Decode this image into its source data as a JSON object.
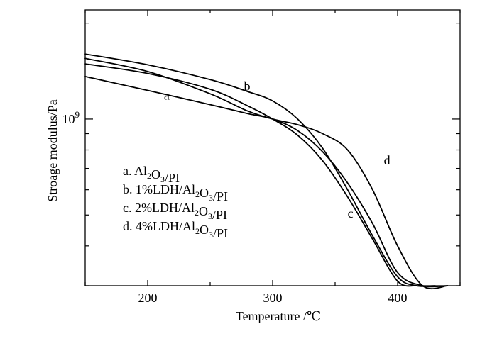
{
  "chart_data": {
    "type": "line",
    "xlabel": "Temperature /℃",
    "ylabel": "Stroage modulus/Pa",
    "y_scale": "log",
    "xlim": [
      150,
      450
    ],
    "ylim": [
      0.3,
      2.2
    ],
    "x_ticks": [
      200,
      300,
      400
    ],
    "y_ticks": [
      {
        "value": 1.0,
        "base": "10",
        "exp": "9"
      }
    ],
    "legend_position": "lower-left",
    "legend": [
      {
        "parts": [
          {
            "t": "a. Al"
          },
          {
            "s": "2"
          },
          {
            "t": "O"
          },
          {
            "s": "3"
          },
          {
            "t": "/PI"
          }
        ]
      },
      {
        "parts": [
          {
            "t": "b. 1%LDH/Al"
          },
          {
            "s": "2"
          },
          {
            "t": "O"
          },
          {
            "s": "3"
          },
          {
            "t": "/PI"
          }
        ]
      },
      {
        "parts": [
          {
            "t": "c. 2%LDH/Al"
          },
          {
            "s": "2"
          },
          {
            "t": "O"
          },
          {
            "s": "3"
          },
          {
            "t": "/PI"
          }
        ]
      },
      {
        "parts": [
          {
            "t": "d. 4%LDH/Al"
          },
          {
            "s": "2"
          },
          {
            "t": "O"
          },
          {
            "s": "3"
          },
          {
            "t": "/PI"
          }
        ]
      }
    ],
    "series": [
      {
        "label": "a",
        "label_at": [
          213,
          1.15
        ],
        "x": [
          150,
          200,
          250,
          280,
          300,
          320,
          340,
          360,
          380,
          400,
          420,
          440
        ],
        "y": [
          1.36,
          1.23,
          1.11,
          1.04,
          1.0,
          0.92,
          0.79,
          0.63,
          0.47,
          0.33,
          0.3,
          0.3
        ]
      },
      {
        "label": "b",
        "label_at": [
          277,
          1.23
        ],
        "x": [
          150,
          200,
          250,
          280,
          300,
          320,
          340,
          360,
          380,
          400,
          415,
          430
        ],
        "y": [
          1.6,
          1.48,
          1.33,
          1.22,
          1.14,
          1.0,
          0.81,
          0.6,
          0.43,
          0.32,
          0.3,
          0.3
        ]
      },
      {
        "label": "c",
        "label_at": [
          360,
          0.49
        ],
        "x": [
          150,
          200,
          250,
          280,
          300,
          320,
          340,
          360,
          380,
          400,
          415
        ],
        "y": [
          1.49,
          1.39,
          1.24,
          1.1,
          1.0,
          0.89,
          0.74,
          0.57,
          0.42,
          0.31,
          0.3
        ]
      },
      {
        "label": "d",
        "label_at": [
          389,
          0.72
        ],
        "x": [
          150,
          200,
          250,
          280,
          300,
          320,
          340,
          360,
          380,
          400,
          420,
          440
        ],
        "y": [
          1.55,
          1.41,
          1.2,
          1.06,
          1.0,
          0.96,
          0.9,
          0.8,
          0.6,
          0.4,
          0.3,
          0.3
        ]
      }
    ]
  }
}
